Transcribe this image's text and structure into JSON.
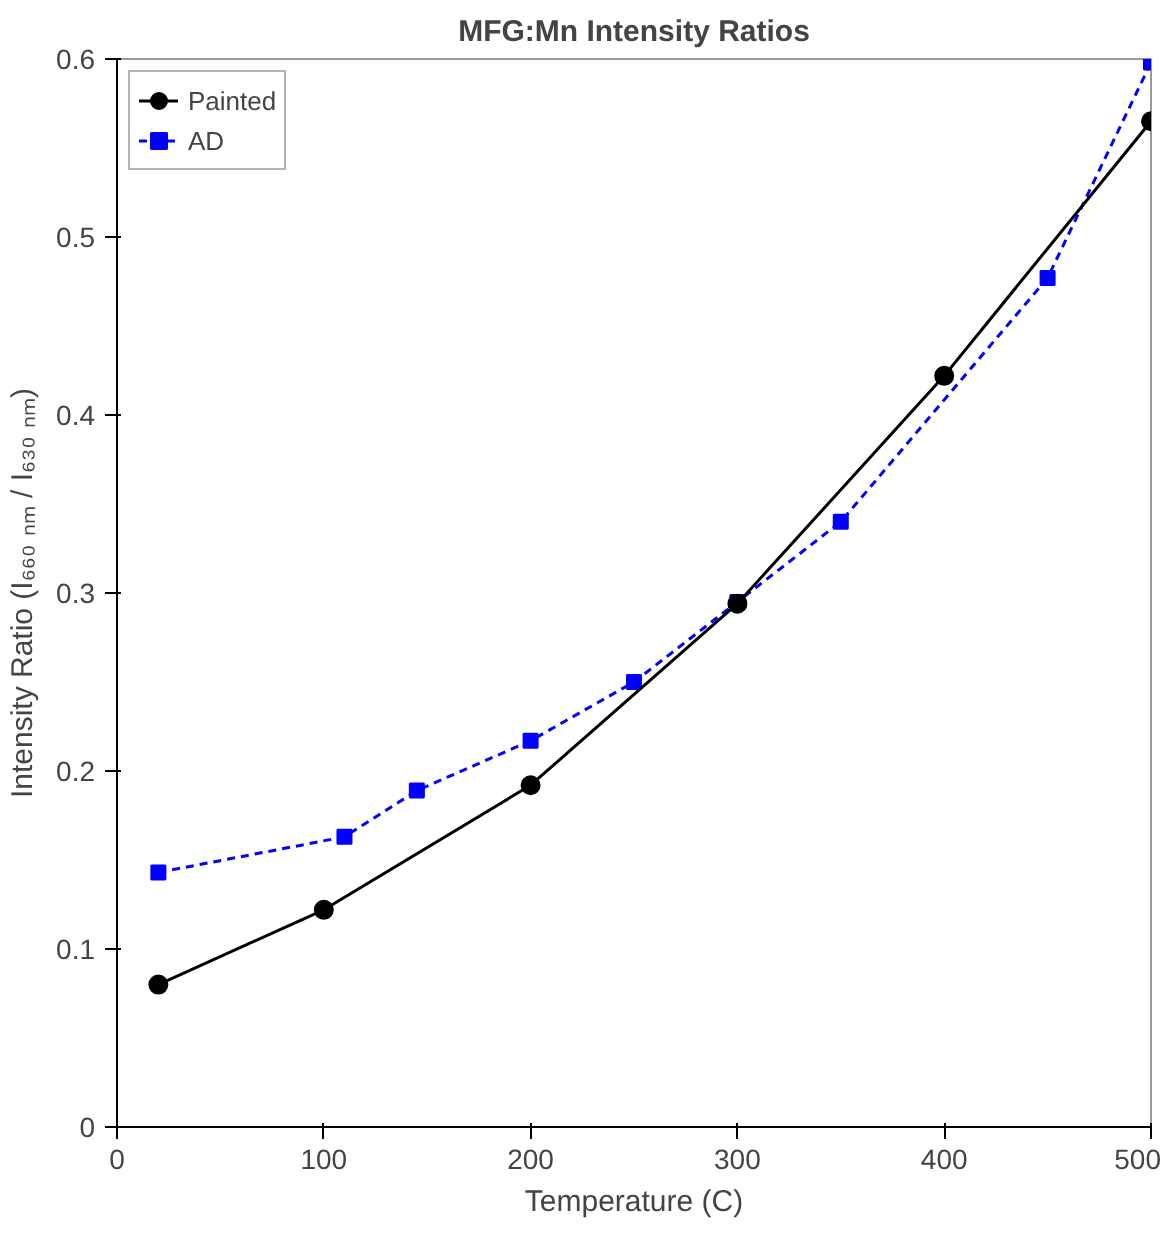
{
  "chart_data": {
    "type": "line",
    "title": "MFG:Mn Intensity Ratios",
    "xlabel": "Temperature (C)",
    "ylabel": "Intensity Ratio (I₆₆₀ ₙₘ / I₆₃₀ ₙₘ)",
    "xlim": [
      0,
      500
    ],
    "ylim": [
      0,
      0.6
    ],
    "xticks": [
      0,
      100,
      200,
      300,
      400,
      500
    ],
    "yticks": [
      0,
      0.1,
      0.2,
      0.3,
      0.4,
      0.5,
      0.6
    ],
    "grid": false,
    "legend": "top left",
    "series": [
      {
        "name": "Painted",
        "color": "#000000",
        "marker": "circle",
        "line_style": "solid",
        "x": [
          20,
          100,
          200,
          300,
          400,
          500
        ],
        "values": [
          0.08,
          0.122,
          0.192,
          0.294,
          0.422,
          0.565
        ]
      },
      {
        "name": "AD",
        "color": "#0000ff",
        "marker": "square",
        "line_style": "dashed",
        "x": [
          20,
          110,
          145,
          200,
          250,
          300,
          350,
          450,
          500
        ],
        "values": [
          0.143,
          0.163,
          0.189,
          0.217,
          0.25,
          0.295,
          0.34,
          0.477,
          0.598
        ]
      }
    ]
  }
}
